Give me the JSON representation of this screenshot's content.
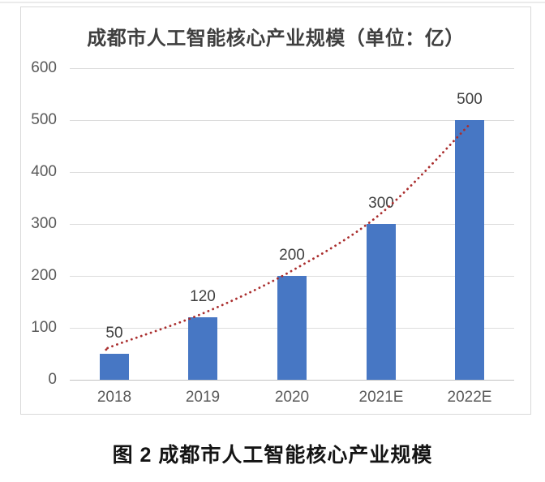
{
  "page": {
    "caption": "图 2 成都市人工智能核心产业规模"
  },
  "chart_data": {
    "type": "bar",
    "title": "成都市人工智能核心产业规模（单位：亿）",
    "unit": "亿",
    "categories": [
      "2018",
      "2019",
      "2020",
      "2021E",
      "2022E"
    ],
    "values": [
      50,
      120,
      200,
      300,
      500
    ],
    "data_labels": [
      "50",
      "120",
      "200",
      "300",
      "500"
    ],
    "yticks": [
      0,
      100,
      200,
      300,
      400,
      500,
      600
    ],
    "ytick_labels": [
      "0",
      "100",
      "200",
      "300",
      "400",
      "500",
      "600"
    ],
    "ylim": [
      0,
      600
    ],
    "grid": true,
    "legend_position": "none",
    "bar_color": "#4777c4",
    "trendline": {
      "style": "dotted",
      "color": "#aa2e2e",
      "fit_values": [
        66,
        128,
        210,
        320,
        492
      ]
    }
  },
  "style": {
    "grid_color": "#dcdcdc",
    "baseline_color": "#c2c2c2",
    "tick_color": "#595959",
    "value_label_color": "#404040",
    "frame_border": "#d9d9d9",
    "title_color": "#3f3f3f",
    "caption_color": "#141414"
  }
}
